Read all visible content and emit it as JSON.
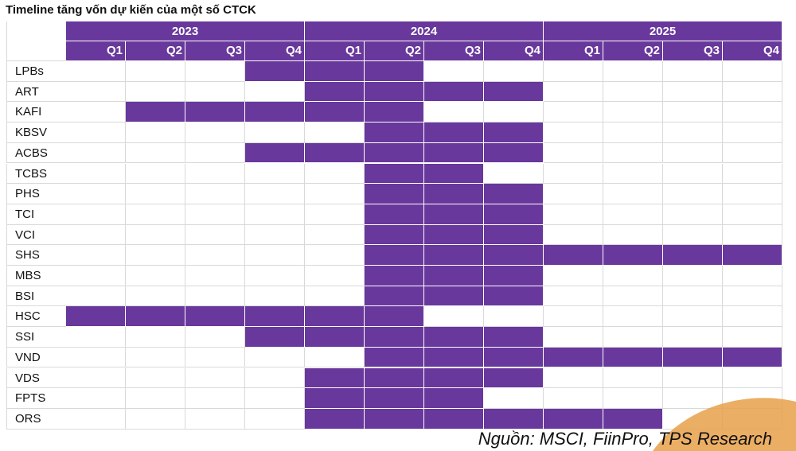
{
  "title": "Timeline tăng vốn dự kiến của một số CTCK",
  "source": "Nguồn: MSCI, FiinPro, TPS Research",
  "colors": {
    "fill": "#68389c",
    "accent_swoosh": "#e8a04a"
  },
  "chart_data": {
    "type": "table",
    "title": "Timeline tăng vốn dự kiến của một số CTCK",
    "years": [
      "2023",
      "2024",
      "2025"
    ],
    "quarters": [
      "Q1",
      "Q2",
      "Q3",
      "Q4"
    ],
    "columns": [
      "2023 Q1",
      "2023 Q2",
      "2023 Q3",
      "2023 Q4",
      "2024 Q1",
      "2024 Q2",
      "2024 Q3",
      "2024 Q4",
      "2025 Q1",
      "2025 Q2",
      "2025 Q3",
      "2025 Q4"
    ],
    "rows": [
      {
        "name": "LPBs",
        "active": [
          0,
          0,
          0,
          1,
          1,
          1,
          0,
          0,
          0,
          0,
          0,
          0
        ]
      },
      {
        "name": "ART",
        "active": [
          0,
          0,
          0,
          0,
          1,
          1,
          1,
          1,
          0,
          0,
          0,
          0
        ]
      },
      {
        "name": "KAFI",
        "active": [
          0,
          1,
          1,
          1,
          1,
          1,
          0,
          0,
          0,
          0,
          0,
          0
        ]
      },
      {
        "name": "KBSV",
        "active": [
          0,
          0,
          0,
          0,
          0,
          1,
          1,
          1,
          0,
          0,
          0,
          0
        ]
      },
      {
        "name": "ACBS",
        "active": [
          0,
          0,
          0,
          1,
          1,
          1,
          1,
          1,
          0,
          0,
          0,
          0
        ]
      },
      {
        "name": "TCBS",
        "active": [
          0,
          0,
          0,
          0,
          0,
          1,
          1,
          0,
          0,
          0,
          0,
          0
        ]
      },
      {
        "name": "PHS",
        "active": [
          0,
          0,
          0,
          0,
          0,
          1,
          1,
          1,
          0,
          0,
          0,
          0
        ]
      },
      {
        "name": "TCI",
        "active": [
          0,
          0,
          0,
          0,
          0,
          1,
          1,
          1,
          0,
          0,
          0,
          0
        ]
      },
      {
        "name": "VCI",
        "active": [
          0,
          0,
          0,
          0,
          0,
          1,
          1,
          1,
          0,
          0,
          0,
          0
        ]
      },
      {
        "name": "SHS",
        "active": [
          0,
          0,
          0,
          0,
          0,
          1,
          1,
          1,
          1,
          1,
          1,
          1
        ]
      },
      {
        "name": "MBS",
        "active": [
          0,
          0,
          0,
          0,
          0,
          1,
          1,
          1,
          0,
          0,
          0,
          0
        ]
      },
      {
        "name": "BSI",
        "active": [
          0,
          0,
          0,
          0,
          0,
          1,
          1,
          1,
          0,
          0,
          0,
          0
        ]
      },
      {
        "name": "HSC",
        "active": [
          1,
          1,
          1,
          1,
          1,
          1,
          0,
          0,
          0,
          0,
          0,
          0
        ]
      },
      {
        "name": "SSI",
        "active": [
          0,
          0,
          0,
          1,
          1,
          1,
          1,
          1,
          0,
          0,
          0,
          0
        ]
      },
      {
        "name": "VND",
        "active": [
          0,
          0,
          0,
          0,
          0,
          1,
          1,
          1,
          1,
          1,
          1,
          1
        ]
      },
      {
        "name": "VDS",
        "active": [
          0,
          0,
          0,
          0,
          1,
          1,
          1,
          1,
          0,
          0,
          0,
          0
        ]
      },
      {
        "name": "FPTS",
        "active": [
          0,
          0,
          0,
          0,
          1,
          1,
          1,
          0,
          0,
          0,
          0,
          0
        ]
      },
      {
        "name": "ORS",
        "active": [
          0,
          0,
          0,
          0,
          1,
          1,
          1,
          1,
          1,
          1,
          0,
          0
        ]
      }
    ]
  }
}
